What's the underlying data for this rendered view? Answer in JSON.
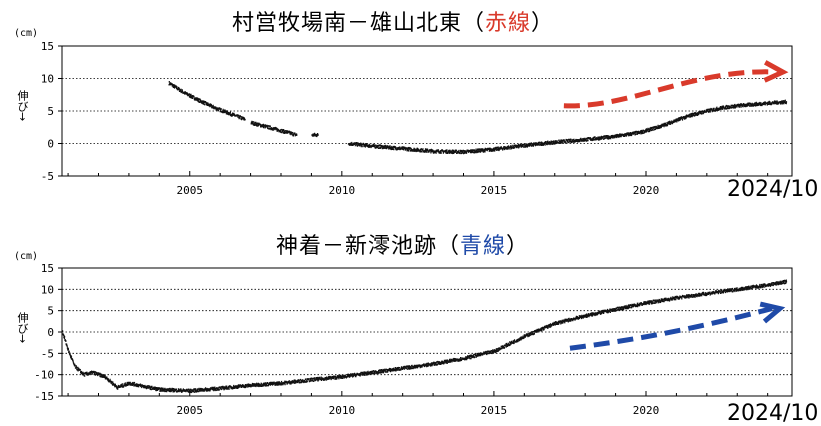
{
  "charts": [
    {
      "title_prefix": "村営牧場南－雄山北東（",
      "title_highlight": "赤線",
      "title_suffix": "）",
      "date_label": "2024/10",
      "unit": "(cm)",
      "ylabel": "伸び→"
    },
    {
      "title_prefix": "神着－新澪池跡（",
      "title_highlight": "青線",
      "title_suffix": "）",
      "date_label": "2024/10",
      "unit": "(cm)",
      "ylabel": "伸び→"
    }
  ],
  "chart_data": [
    {
      "type": "scatter",
      "title": "村営牧場南－雄山北東（赤線）",
      "ylabel": "伸び→ (cm)",
      "xlim": [
        2000.8,
        2024.8
      ],
      "ylim": [
        -5,
        15
      ],
      "yticks": [
        -5,
        0,
        5,
        10,
        15
      ],
      "xticks": [
        2005,
        2010,
        2015,
        2020
      ],
      "grid": "horizontal dotted",
      "series": [
        {
          "segments": [
            {
              "x": [
                2004.3,
                2004.8,
                2005.3,
                2005.8,
                2006.3,
                2006.8
              ],
              "y": [
                9.3,
                7.8,
                6.6,
                5.5,
                4.6,
                3.7
              ]
            },
            {
              "x": [
                2007.0,
                2007.4,
                2007.8,
                2008.2,
                2008.5
              ],
              "y": [
                3.2,
                2.7,
                2.2,
                1.7,
                1.3
              ]
            },
            {
              "x": [
                2009.0,
                2009.2
              ],
              "y": [
                1.3,
                1.3
              ]
            },
            {
              "x": [
                2010.2,
                2011.0,
                2012.0,
                2013.0,
                2014.0,
                2015.0,
                2016.0,
                2017.0,
                2018.0,
                2019.0,
                2019.8,
                2020.5,
                2021.0,
                2021.5,
                2022.0,
                2022.5,
                2023.0,
                2023.5,
                2024.0,
                2024.6
              ],
              "y": [
                0.0,
                -0.4,
                -0.8,
                -1.2,
                -1.3,
                -0.9,
                -0.3,
                0.2,
                0.6,
                1.1,
                1.7,
                2.7,
                3.6,
                4.4,
                5.0,
                5.5,
                5.8,
                6.0,
                6.2,
                6.4
              ]
            }
          ]
        }
      ],
      "annotation_arrow": {
        "color": "#d93a2b",
        "from": [
          2017.3,
          5.8
        ],
        "mid1": [
          2019.5,
          5.4
        ],
        "mid2": [
          2021.5,
          11.5
        ],
        "to": [
          2024.5,
          11.0
        ]
      }
    },
    {
      "type": "scatter",
      "title": "神着－新澪池跡（青線）",
      "ylabel": "伸び→ (cm)",
      "xlim": [
        2000.8,
        2024.8
      ],
      "ylim": [
        -15,
        15
      ],
      "yticks": [
        -15,
        -10,
        -5,
        0,
        5,
        10,
        15
      ],
      "xticks": [
        2005,
        2010,
        2015,
        2020
      ],
      "grid": "horizontal dotted",
      "series": [
        {
          "segments": [
            {
              "x": [
                2000.8,
                2001.0,
                2001.2,
                2001.5,
                2001.8,
                2002.2,
                2002.6,
                2003.0,
                2003.5,
                2004.0,
                2005.0,
                2006.0,
                2007.0,
                2008.0,
                2009.0,
                2010.0,
                2011.0,
                2012.0,
                2013.0,
                2014.0,
                2015.0,
                2016.0,
                2017.0,
                2018.0,
                2019.0,
                2020.0,
                2021.0,
                2022.0,
                2023.0,
                2024.0,
                2024.6
              ],
              "y": [
                0.0,
                -4.5,
                -8.0,
                -10.0,
                -9.5,
                -10.5,
                -13.0,
                -12.0,
                -12.8,
                -13.5,
                -13.8,
                -13.2,
                -12.5,
                -12.0,
                -11.2,
                -10.5,
                -9.5,
                -8.5,
                -7.5,
                -6.2,
                -4.5,
                -1.0,
                2.0,
                3.8,
                5.3,
                6.8,
                8.0,
                9.0,
                10.0,
                11.0,
                11.8
              ]
            }
          ]
        }
      ],
      "annotation_arrow": {
        "color": "#1f4aa8",
        "from": [
          2017.5,
          -3.8
        ],
        "mid1": [
          2019.5,
          -2.0
        ],
        "mid2": [
          2021.5,
          0.5
        ],
        "to": [
          2024.4,
          5.5
        ]
      }
    }
  ]
}
